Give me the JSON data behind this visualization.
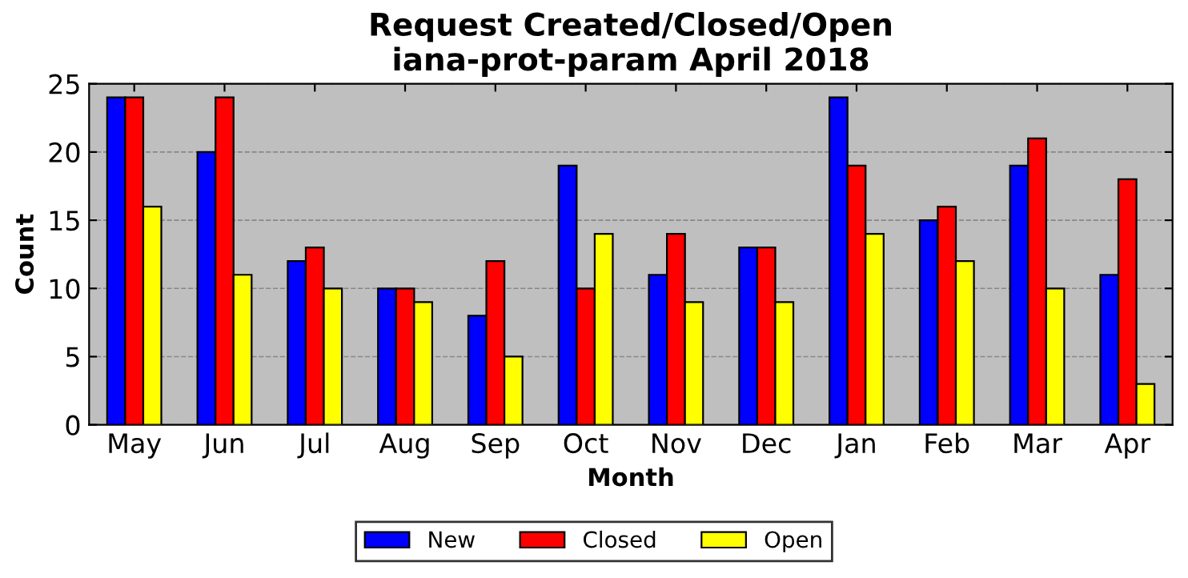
{
  "chart_data": {
    "type": "bar",
    "title": "Request Created/Closed/Open\niana-prot-param April 2018",
    "xlabel": "Month",
    "ylabel": "Count",
    "categories": [
      "May",
      "Jun",
      "Jul",
      "Aug",
      "Sep",
      "Oct",
      "Nov",
      "Dec",
      "Jan",
      "Feb",
      "Mar",
      "Apr"
    ],
    "series": [
      {
        "name": "New",
        "color": "#0000ff",
        "values": [
          24,
          20,
          12,
          10,
          8,
          19,
          11,
          13,
          24,
          15,
          19,
          11
        ]
      },
      {
        "name": "Closed",
        "color": "#ff0000",
        "values": [
          24,
          24,
          13,
          10,
          12,
          10,
          14,
          13,
          19,
          16,
          21,
          18
        ]
      },
      {
        "name": "Open",
        "color": "#ffff00",
        "values": [
          16,
          11,
          10,
          9,
          5,
          14,
          9,
          9,
          14,
          12,
          10,
          3
        ]
      }
    ],
    "ylim": [
      0,
      25
    ],
    "yticks": [
      0,
      5,
      10,
      15,
      20,
      25
    ],
    "grid": "y",
    "legend": "bottom"
  }
}
